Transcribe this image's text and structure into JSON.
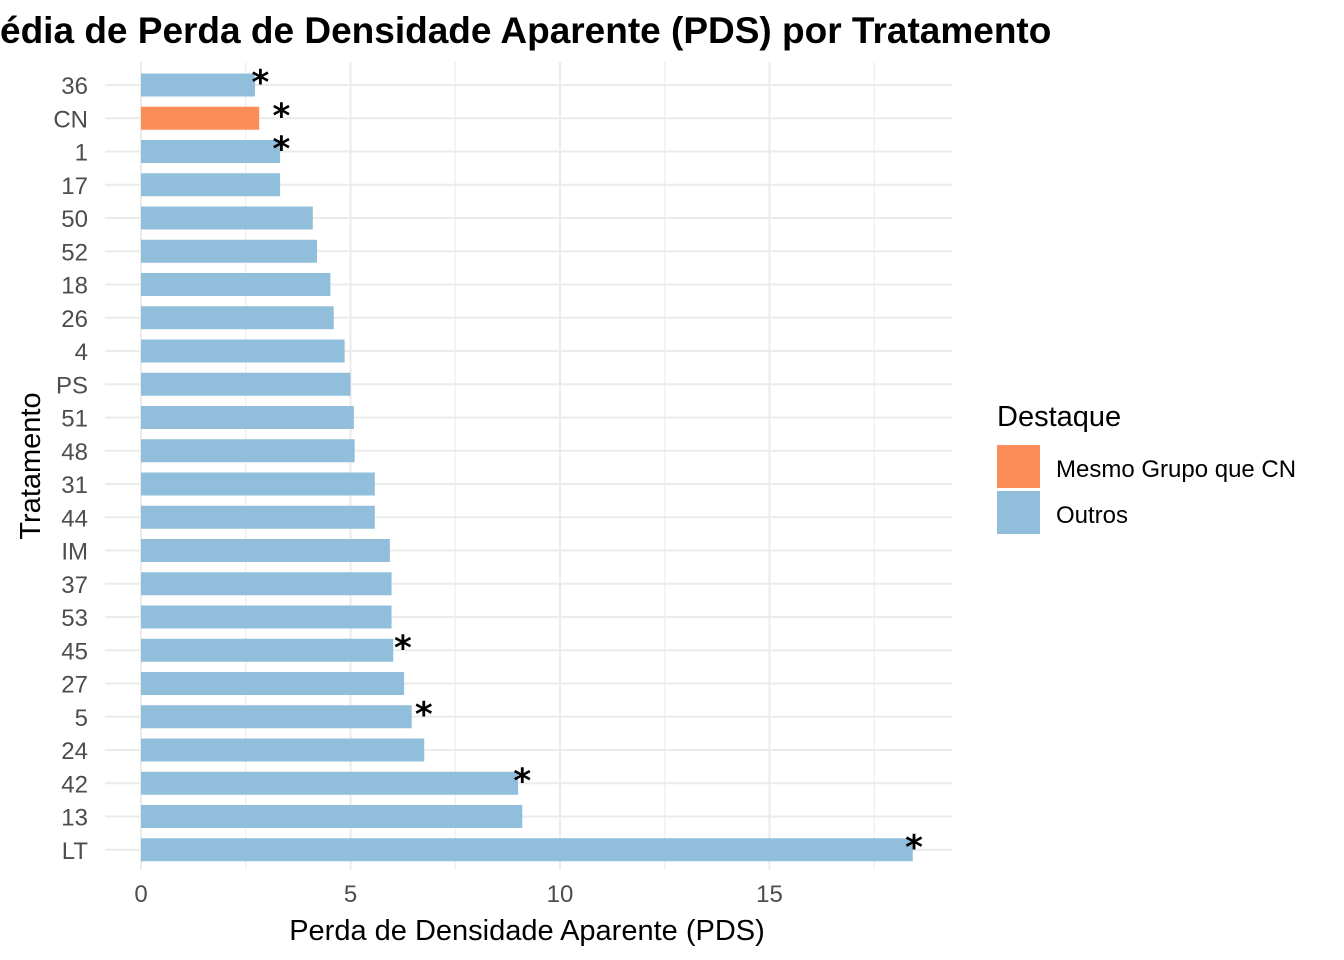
{
  "chart_data": {
    "type": "bar",
    "orientation": "horizontal",
    "title": "édia de Perda de Densidade Aparente (PDS) por Tratamento",
    "xlabel": "Perda de Densidade Aparente (PDS)",
    "ylabel": "Tratamento",
    "xlim": [
      -0.85,
      19.4
    ],
    "xticks": [
      0,
      5,
      10,
      15
    ],
    "grid": true,
    "categories": [
      "36",
      "CN",
      "1",
      "17",
      "50",
      "52",
      "18",
      "26",
      "4",
      "PS",
      "51",
      "48",
      "31",
      "44",
      "IM",
      "37",
      "53",
      "45",
      "27",
      "5",
      "24",
      "42",
      "13",
      "LT"
    ],
    "values": [
      2.72,
      2.82,
      3.32,
      3.32,
      4.1,
      4.2,
      4.52,
      4.6,
      4.86,
      5.0,
      5.08,
      5.1,
      5.58,
      5.58,
      5.94,
      5.98,
      5.98,
      6.02,
      6.28,
      6.46,
      6.76,
      9.0,
      9.1,
      18.42
    ],
    "groups": [
      "Outros",
      "Mesmo Grupo que CN",
      "Outros",
      "Outros",
      "Outros",
      "Outros",
      "Outros",
      "Outros",
      "Outros",
      "Outros",
      "Outros",
      "Outros",
      "Outros",
      "Outros",
      "Outros",
      "Outros",
      "Outros",
      "Outros",
      "Outros",
      "Outros",
      "Outros",
      "Outros",
      "Outros",
      "Outros"
    ],
    "significance_markers": [
      {
        "category": "36",
        "label": "*",
        "x": 2.85
      },
      {
        "category": "CN",
        "label": "*",
        "x": 3.35
      },
      {
        "category": "1",
        "label": "*",
        "x": 3.35
      },
      {
        "category": "45",
        "label": "*",
        "x": 6.25
      },
      {
        "category": "5",
        "label": "*",
        "x": 6.75
      },
      {
        "category": "42",
        "label": "*",
        "x": 9.1
      },
      {
        "category": "LT",
        "label": "*",
        "x": 18.45
      }
    ],
    "legend": {
      "title": "Destaque",
      "placement": "right",
      "items": [
        {
          "label": "Mesmo Grupo que CN",
          "color": "#FC8D59"
        },
        {
          "label": "Outros",
          "color": "#91BFDB"
        }
      ]
    }
  }
}
